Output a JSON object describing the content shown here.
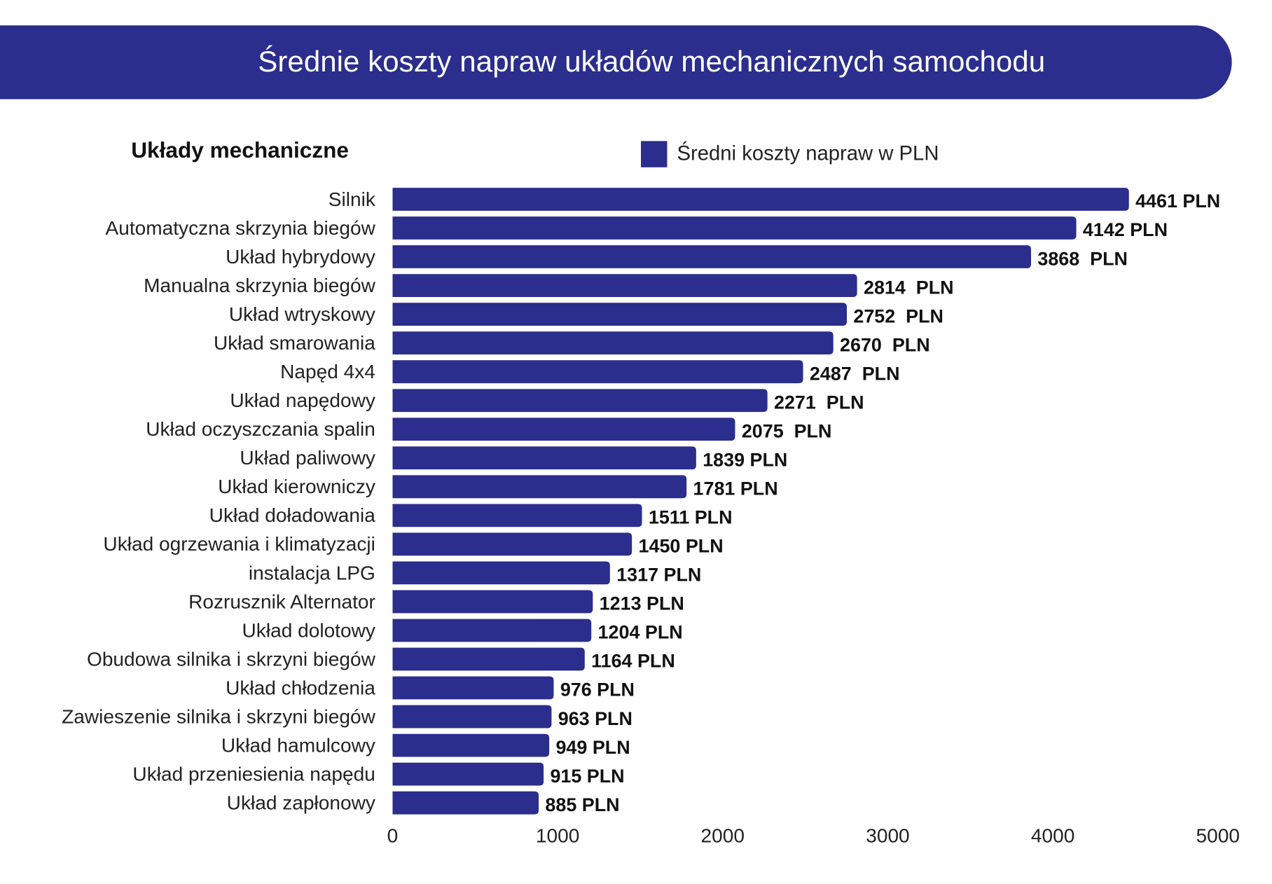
{
  "header": {
    "title": "Średnie koszty napraw układów mechanicznych samochodu"
  },
  "chart_data": {
    "type": "bar",
    "orientation": "horizontal",
    "title": "Średnie koszty napraw układów mechanicznych samochodu",
    "category_axis_title": "Układy mechaniczne",
    "legend": {
      "position": "top",
      "entries": [
        "Średni koszty napraw w PLN"
      ]
    },
    "categories": [
      "Silnik",
      "Automatyczna skrzynia biegów",
      "Układ hybrydowy",
      "Manualna skrzynia biegów",
      "Układ wtryskowy",
      "Układ smarowania",
      "Napęd 4x4",
      "Układ napędowy",
      "Układ oczyszczania spalin",
      "Układ paliwowy",
      "Układ kierowniczy",
      "Układ doładowania",
      "Układ ogrzewania i klimatyzacji",
      "instalacja LPG",
      "Rozrusznik Alternator",
      "Układ dolotowy",
      "Obudowa silnika i skrzyni biegów",
      "Układ chłodzenia",
      "Zawieszenie silnika i skrzyni biegów",
      "Układ hamulcowy",
      "Układ przeniesienia napędu",
      "Układ zapłonowy"
    ],
    "series": [
      {
        "name": "Średni koszty napraw w PLN",
        "color": "#2b2e8c",
        "values": [
          4461,
          4142,
          3868,
          2814,
          2752,
          2670,
          2487,
          2271,
          2075,
          1839,
          1781,
          1511,
          1450,
          1317,
          1213,
          1204,
          1164,
          976,
          963,
          949,
          915,
          885
        ]
      }
    ],
    "data_labels": [
      "4461 PLN",
      "4142 PLN",
      "3868  PLN",
      "2814  PLN",
      "2752  PLN",
      "2670  PLN",
      "2487  PLN",
      "2271  PLN",
      "2075  PLN",
      "1839 PLN",
      "1781 PLN",
      "1511 PLN",
      "1450 PLN",
      "1317 PLN",
      "1213 PLN",
      "1204 PLN",
      "1164 PLN",
      "976 PLN",
      "963 PLN",
      "949 PLN",
      "915 PLN",
      "885 PLN"
    ],
    "xlim": [
      0,
      5000
    ],
    "x_ticks": [
      "0",
      "1000",
      "2000",
      "3000",
      "4000",
      "5000"
    ],
    "grid": false
  }
}
